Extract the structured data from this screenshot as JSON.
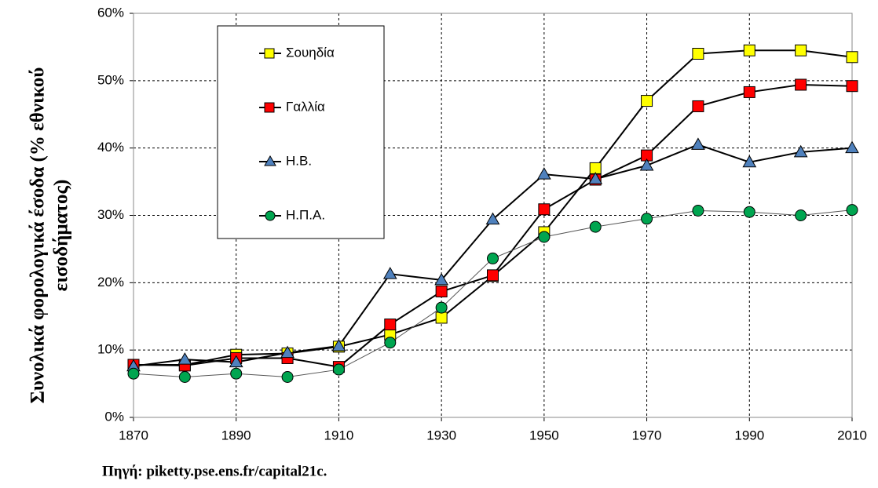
{
  "chart_data": {
    "type": "line",
    "y_label_lines": [
      "Συνολικά φορολογικά έσοδα (% εθνικού",
      "εισοδήματος)"
    ],
    "source": "Πηγή: piketty.pse.ens.fr/capital21c.",
    "x": [
      1870,
      1880,
      1890,
      1900,
      1910,
      1920,
      1930,
      1940,
      1950,
      1960,
      1970,
      1980,
      1990,
      2000,
      2010
    ],
    "series": [
      {
        "name": "Σουηδία",
        "color": "#ffff00",
        "marker": "square",
        "values": [
          7.8,
          7.8,
          9.3,
          9.5,
          10.5,
          12.3,
          14.8,
          21.0,
          27.5,
          37.0,
          47.0,
          54.0,
          54.5,
          54.5,
          53.5
        ]
      },
      {
        "name": "Γαλλία",
        "color": "#ff0000",
        "marker": "square",
        "values": [
          7.8,
          7.7,
          8.8,
          8.8,
          7.5,
          13.8,
          18.7,
          21.1,
          30.9,
          35.3,
          38.9,
          46.2,
          48.3,
          49.4,
          49.2
        ]
      },
      {
        "name": "Η.Β.",
        "color": "#4f81bd",
        "marker": "triangle",
        "values": [
          7.6,
          8.6,
          8.2,
          9.6,
          10.6,
          21.3,
          20.4,
          29.4,
          36.1,
          35.4,
          37.4,
          40.5,
          37.9,
          39.4,
          40.0
        ]
      },
      {
        "name": "Η.Π.Α.",
        "color": "#00a550",
        "marker": "circle",
        "values": [
          6.5,
          6.0,
          6.5,
          6.0,
          7.1,
          11.1,
          16.3,
          23.6,
          26.8,
          28.3,
          29.5,
          30.7,
          30.5,
          30.0,
          30.8
        ]
      }
    ],
    "xlim": [
      1870,
      2010
    ],
    "xticks": [
      1870,
      1890,
      1910,
      1930,
      1950,
      1970,
      1990,
      2010
    ],
    "ylim": [
      0,
      60
    ],
    "yticks": [
      {
        "value": 0,
        "label": "0%"
      },
      {
        "value": 10,
        "label": "10%"
      },
      {
        "value": 20,
        "label": "20%"
      },
      {
        "value": 30,
        "label": "30%"
      },
      {
        "value": 40,
        "label": "40%"
      },
      {
        "value": 50,
        "label": "50%"
      },
      {
        "value": 60,
        "label": "60%"
      }
    ],
    "grid": true
  }
}
